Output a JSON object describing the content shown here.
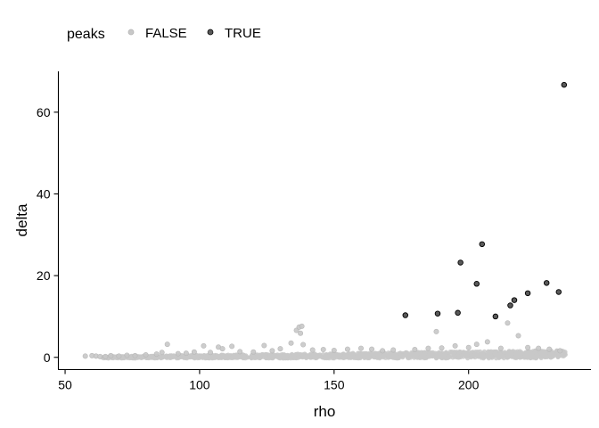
{
  "chart_data": {
    "type": "scatter",
    "title": "",
    "xlabel": "rho",
    "ylabel": "delta",
    "xlim": [
      47.5,
      245.5
    ],
    "ylim": [
      -3.0,
      70.0
    ],
    "xticks": [
      50,
      100,
      150,
      200
    ],
    "yticks": [
      0,
      20,
      40,
      60
    ],
    "grid": false,
    "legend": {
      "title": "peaks",
      "position": "top-left",
      "entries": [
        "FALSE",
        "TRUE"
      ]
    },
    "colors": {
      "FALSE": "#c8c8c8",
      "TRUE": "#595959"
    },
    "series": [
      {
        "name": "TRUE",
        "points": [
          [
            176.5,
            10.3
          ],
          [
            188.5,
            10.7
          ],
          [
            196.0,
            10.9
          ],
          [
            197.0,
            23.2
          ],
          [
            203.0,
            18.0
          ],
          [
            205.0,
            27.7
          ],
          [
            210.0,
            10.0
          ],
          [
            215.5,
            12.7
          ],
          [
            217.0,
            14.0
          ],
          [
            222.0,
            15.7
          ],
          [
            229.0,
            18.2
          ],
          [
            233.5,
            16.0
          ],
          [
            235.5,
            66.7
          ]
        ]
      },
      {
        "name": "FALSE",
        "points": [
          [
            57.5,
            0.3
          ],
          [
            60.0,
            0.4
          ],
          [
            61.5,
            0.3
          ],
          [
            63.0,
            0.2
          ],
          [
            65.0,
            0.2
          ],
          [
            67.0,
            0.4
          ],
          [
            70.0,
            0.3
          ],
          [
            73.0,
            0.5
          ],
          [
            76.0,
            0.4
          ],
          [
            80.0,
            0.6
          ],
          [
            84.0,
            0.8
          ],
          [
            86.0,
            1.2
          ],
          [
            88.0,
            3.2
          ],
          [
            92.0,
            0.9
          ],
          [
            95.0,
            1.0
          ],
          [
            98.0,
            1.3
          ],
          [
            101.5,
            2.8
          ],
          [
            104.0,
            1.2
          ],
          [
            107.0,
            2.5
          ],
          [
            108.5,
            2.1
          ],
          [
            112.0,
            2.7
          ],
          [
            115.0,
            1.4
          ],
          [
            120.0,
            1.3
          ],
          [
            124.0,
            2.9
          ],
          [
            127.0,
            1.6
          ],
          [
            130.0,
            2.1
          ],
          [
            134.0,
            3.5
          ],
          [
            136.0,
            6.6
          ],
          [
            137.0,
            7.4
          ],
          [
            137.5,
            5.9
          ],
          [
            138.0,
            7.6
          ],
          [
            138.5,
            3.1
          ],
          [
            142.0,
            1.8
          ],
          [
            146.0,
            1.9
          ],
          [
            150.0,
            1.7
          ],
          [
            155.0,
            2.0
          ],
          [
            160.0,
            2.2
          ],
          [
            164.0,
            2.0
          ],
          [
            168.0,
            1.6
          ],
          [
            172.0,
            1.8
          ],
          [
            180.0,
            1.9
          ],
          [
            185.0,
            2.2
          ],
          [
            188.0,
            6.3
          ],
          [
            190.0,
            2.3
          ],
          [
            195.0,
            2.8
          ],
          [
            200.0,
            2.4
          ],
          [
            203.0,
            3.2
          ],
          [
            207.0,
            3.8
          ],
          [
            212.0,
            2.2
          ],
          [
            214.5,
            8.4
          ],
          [
            218.5,
            5.3
          ],
          [
            222.0,
            2.4
          ],
          [
            226.0,
            2.2
          ],
          [
            230.0,
            2.0
          ],
          [
            234.0,
            1.6
          ]
        ]
      }
    ]
  }
}
